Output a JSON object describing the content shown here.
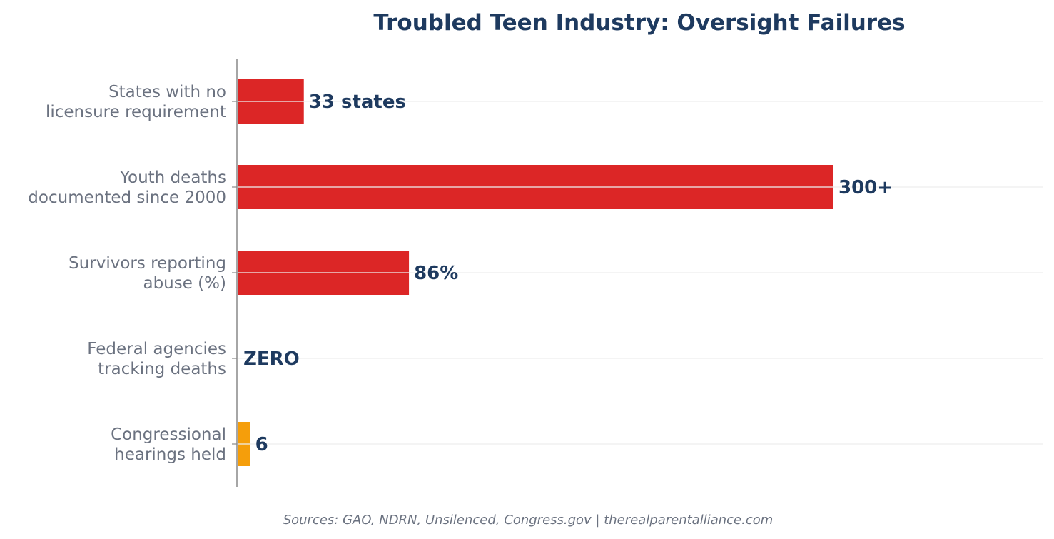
{
  "chart_data": {
    "type": "bar",
    "orientation": "horizontal",
    "title": "Troubled Teen Industry: Oversight Failures",
    "categories": [
      "States with no\nlicensure requirement",
      "Youth deaths\ndocumented since 2000",
      "Survivors reporting\nabuse (%)",
      "Federal agencies\ntracking deaths",
      "Congressional\nhearings held"
    ],
    "values": [
      33,
      300,
      86,
      0,
      6
    ],
    "value_labels": [
      "33 states",
      "300+",
      "86%",
      "ZERO",
      "6"
    ],
    "bar_colors": [
      "#dc2626",
      "#dc2626",
      "#dc2626",
      "#dc2626",
      "#f59e0b"
    ],
    "xlim": [
      0,
      405
    ],
    "grid": true,
    "legend": "none",
    "source": "Sources: GAO, NDRN, Unsilenced, Congress.gov | therealparentalliance.com"
  },
  "colors": {
    "title": "#1e3a5f",
    "value_label": "#1e3a5f",
    "category_label": "#6b7280",
    "axis": "#888888",
    "grid": "#eeeeee",
    "source": "#6b7280"
  }
}
